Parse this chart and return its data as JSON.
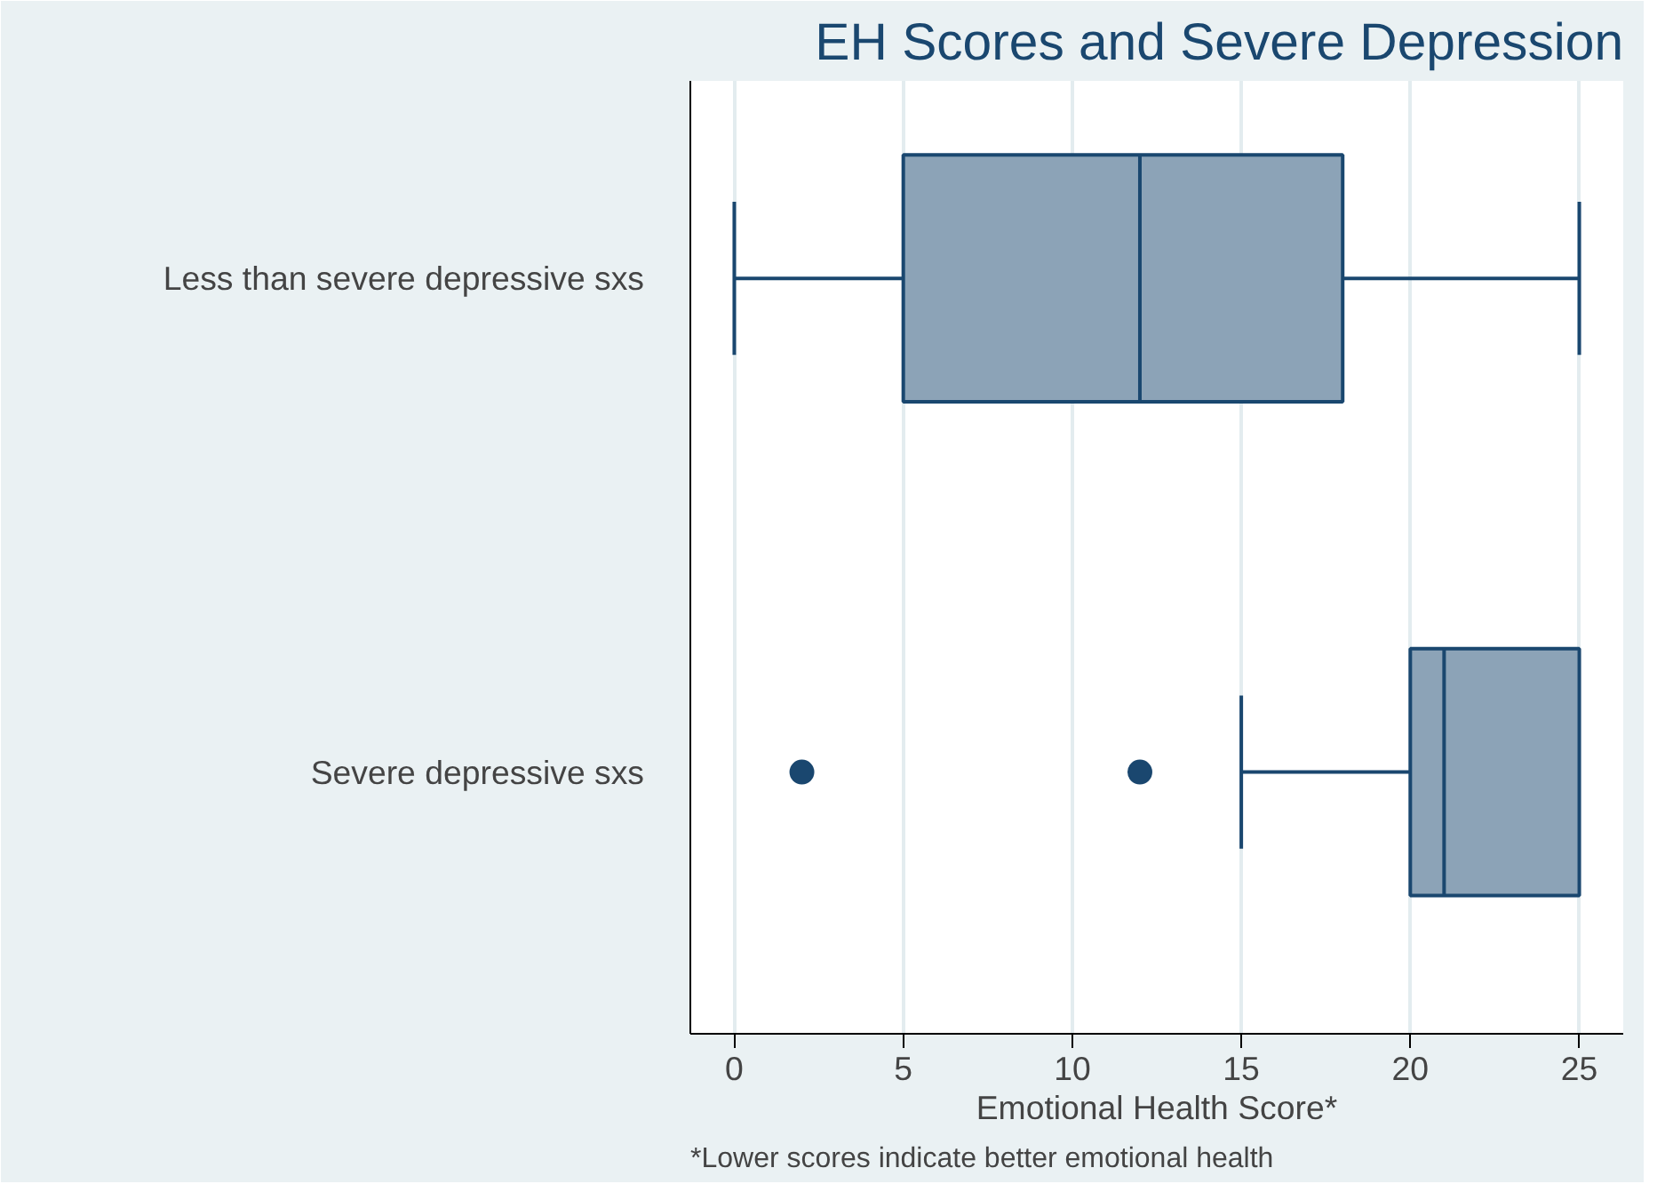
{
  "chart_data": {
    "type": "box",
    "title": "EH Scores and Severe Depression",
    "xlabel": "Emotional Health Score*",
    "categories": [
      "Less than severe depressive sxs",
      "Severe depressive sxs"
    ],
    "orientation": "horizontal",
    "series": [
      {
        "color": "#8ca3b7",
        "boxes": [
          {
            "low": 0,
            "q1": 5,
            "median": 12,
            "q3": 18,
            "high": 25
          },
          {
            "low": 15,
            "q1": 20,
            "median": 21,
            "q3": 25,
            "high": 25,
            "outliers": [
              2,
              12
            ]
          }
        ]
      }
    ],
    "xlim": [
      -1.3,
      26.3
    ],
    "xticks": [
      0,
      5,
      10,
      15,
      20,
      25
    ],
    "grid": "x",
    "marker": "circle",
    "annotations": [
      "*Lower scores indicate better emotional health"
    ]
  }
}
